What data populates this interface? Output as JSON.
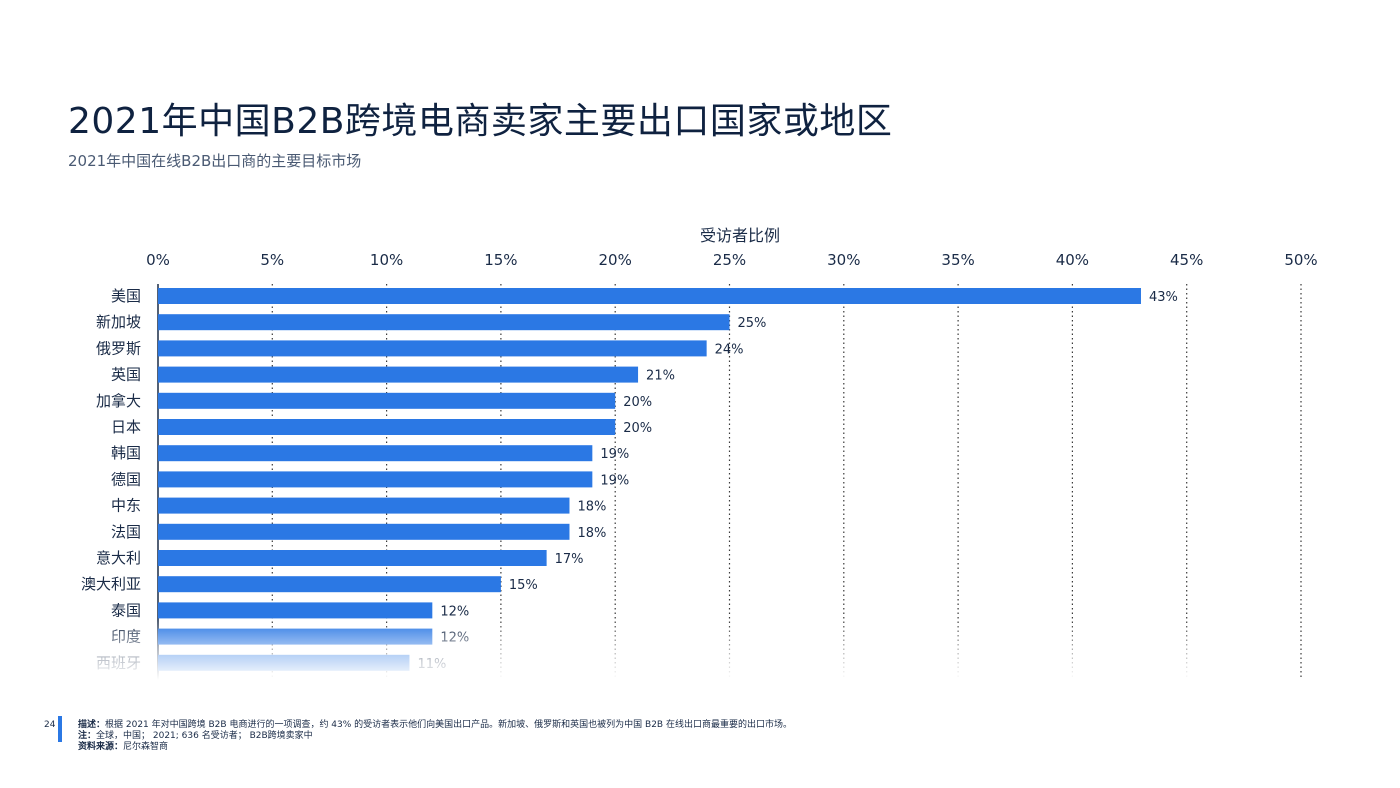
{
  "header": {
    "title": "2021年中国B2B跨境电商卖家主要出口国家或地区",
    "subtitle": "2021年中国在线B2B出口商的主要目标市场"
  },
  "chart_data": {
    "type": "bar",
    "orientation": "horizontal",
    "xlabel": "受访者比例",
    "xlim": [
      0,
      50
    ],
    "xticks": [
      "0%",
      "5%",
      "10%",
      "15%",
      "20%",
      "25%",
      "30%",
      "35%",
      "40%",
      "45%",
      "50%"
    ],
    "grid": "vertical dotted",
    "bar_color": "#2b78e4",
    "categories": [
      "美国",
      "新加坡",
      "俄罗斯",
      "英国",
      "加拿大",
      "日本",
      "韩国",
      "德国",
      "中东",
      "法国",
      "意大利",
      "澳大利亚",
      "泰国",
      "印度",
      "西班牙"
    ],
    "values": [
      43,
      25,
      24,
      21,
      20,
      20,
      19,
      19,
      18,
      18,
      17,
      15,
      12,
      12,
      11
    ],
    "value_labels": [
      "43%",
      "25%",
      "24%",
      "21%",
      "20%",
      "20%",
      "19%",
      "19%",
      "18%",
      "18%",
      "17%",
      "15%",
      "12%",
      "12%",
      "11%"
    ]
  },
  "footer": {
    "page_number": "24",
    "desc_label": "描述：",
    "desc_text": "根据 2021 年对中国跨境 B2B 电商进行的一项调查，约 43% 的受访者表示他们向美国出口产品。新加坡、俄罗斯和英国也被列为中国 B2B 在线出口商最重要的出口市场。",
    "note_label": "注：",
    "note_text": "全球，中国； 2021; 636 名受访者； B2B跨境卖家中",
    "source_label": "资料来源：",
    "source_text": "尼尔森智商"
  }
}
